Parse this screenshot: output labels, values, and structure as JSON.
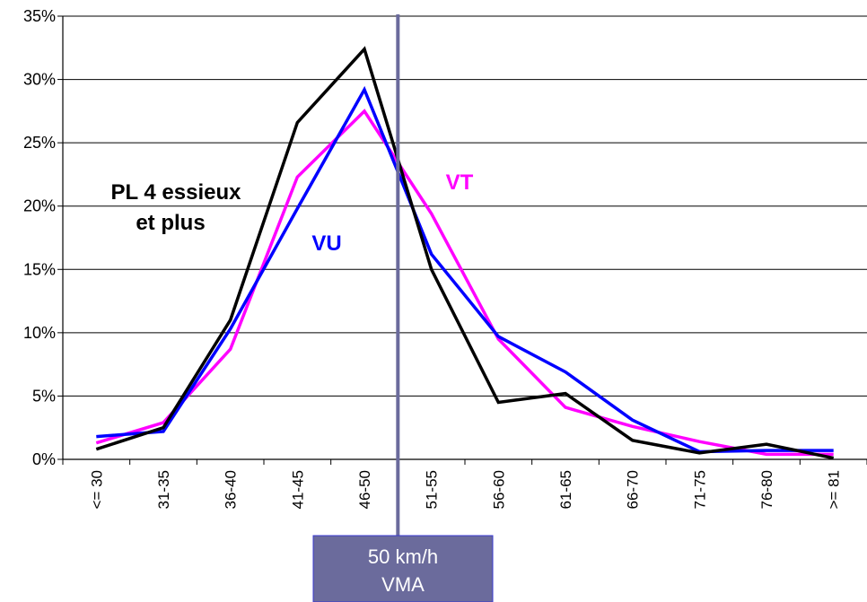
{
  "chart_data": {
    "type": "line",
    "title": "",
    "xlabel": "",
    "ylabel": "",
    "ylim": [
      0,
      35
    ],
    "yticks": [
      "0%",
      "5%",
      "10%",
      "15%",
      "20%",
      "25%",
      "30%",
      "35%"
    ],
    "grid": "horizontal",
    "categories": [
      "<= 30",
      "31-35",
      "36-40",
      "41-45",
      "46-50",
      "51-55",
      "56-60",
      "61-65",
      "66-70",
      "71-75",
      "76-80",
      ">= 81"
    ],
    "series": [
      {
        "name": "PL 4 essieux et plus",
        "color": "#000000",
        "values": [
          0.8,
          2.5,
          11.0,
          26.6,
          32.4,
          15.0,
          4.5,
          5.2,
          1.5,
          0.5,
          1.2,
          0.1
        ]
      },
      {
        "name": "VU",
        "color": "#0000ff",
        "values": [
          1.8,
          2.2,
          10.3,
          19.8,
          29.2,
          16.2,
          9.7,
          6.9,
          3.1,
          0.6,
          0.7,
          0.7
        ]
      },
      {
        "name": "VT",
        "color": "#ff00ff",
        "values": [
          1.3,
          2.9,
          8.7,
          22.3,
          27.5,
          19.4,
          9.5,
          4.1,
          2.6,
          1.4,
          0.4,
          0.4
        ]
      }
    ],
    "series_labels": {
      "pl_line1": "PL 4 essieux",
      "pl_line2": "et plus",
      "vu": "VU",
      "vt": "VT"
    },
    "reference_line": {
      "speed": 50,
      "color": "#6b6b9c",
      "label_line1": "50 km/h",
      "label_line2": "VMA"
    }
  }
}
